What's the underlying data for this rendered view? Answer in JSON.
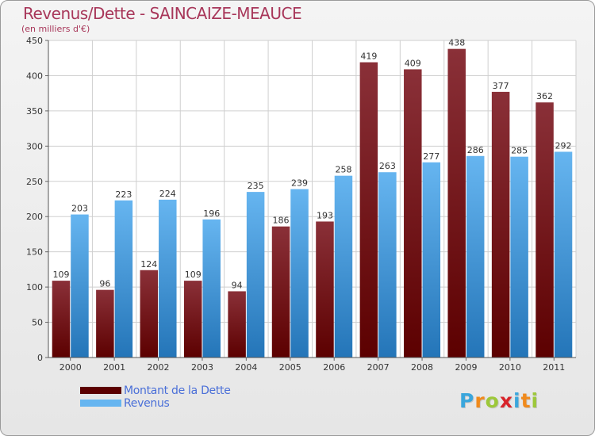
{
  "title": "Revenus/Dette - SAINCAIZE-MEAUCE",
  "subtitle": "(en milliers d'€)",
  "colors": {
    "dette_top": "#8a3038",
    "dette_bottom": "#5c0000",
    "revenus_top": "#66b5f0",
    "revenus_bottom": "#2475b8",
    "title": "#a8375a",
    "legend_text": "#4a6fd8"
  },
  "legend": {
    "dette_label": "Montant de la Dette",
    "revenus_label": "Revenus"
  },
  "logo": {
    "text": "Proxiti",
    "letters": [
      {
        "ch": "P",
        "color": "#3aa6dc"
      },
      {
        "ch": "r",
        "color": "#f08a1c"
      },
      {
        "ch": "o",
        "color": "#9dc83a"
      },
      {
        "ch": "x",
        "color": "#d8232a"
      },
      {
        "ch": "i",
        "color": "#3aa6dc"
      },
      {
        "ch": "t",
        "color": "#f08a1c"
      },
      {
        "ch": "i",
        "color": "#9dc83a"
      }
    ]
  },
  "chart_data": {
    "type": "bar",
    "categories": [
      "2000",
      "2001",
      "2002",
      "2003",
      "2004",
      "2005",
      "2006",
      "2007",
      "2008",
      "2009",
      "2010",
      "2011"
    ],
    "series": [
      {
        "name": "Montant de la Dette",
        "values": [
          109,
          96,
          124,
          109,
          94,
          186,
          193,
          419,
          409,
          438,
          377,
          362
        ]
      },
      {
        "name": "Revenus",
        "values": [
          203,
          223,
          224,
          196,
          235,
          239,
          258,
          263,
          277,
          286,
          285,
          292
        ]
      }
    ],
    "yticks": [
      0,
      50,
      100,
      150,
      200,
      250,
      300,
      350,
      400,
      450
    ],
    "ylim": [
      0,
      450
    ],
    "grid": true,
    "legend_position": "bottom-left"
  }
}
